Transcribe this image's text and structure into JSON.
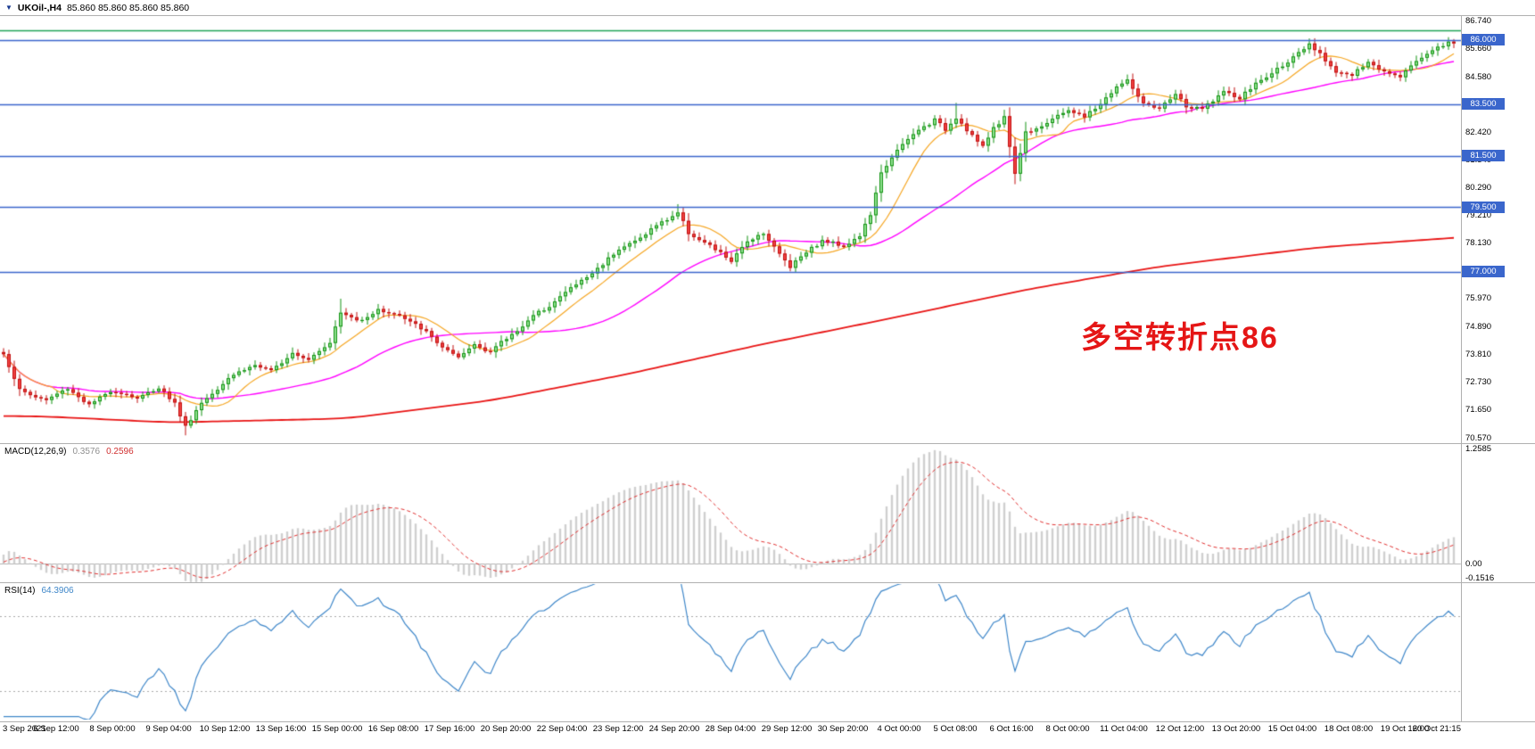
{
  "header": {
    "icon": "▼",
    "symbol": "UKOil-,H4",
    "ohlc": "85.860 85.860 85.860 85.860"
  },
  "annotation": {
    "text": "多空转折点86",
    "color": "#e51616"
  },
  "price_axis": {
    "labels": [
      "86.740",
      "85.660",
      "84.580",
      "83.500",
      "82.420",
      "81.340",
      "80.290",
      "79.210",
      "78.130",
      "77.050",
      "75.970",
      "74.890",
      "73.810",
      "72.730",
      "71.650",
      "70.570"
    ]
  },
  "time_axis": {
    "labels": [
      "3 Sep 2021",
      "6 Sep 12:00",
      "8 Sep 00:00",
      "9 Sep 04:00",
      "10 Sep 12:00",
      "13 Sep 16:00",
      "15 Sep 00:00",
      "16 Sep 08:00",
      "17 Sep 16:00",
      "20 Sep 20:00",
      "22 Sep 04:00",
      "23 Sep 12:00",
      "24 Sep 20:00",
      "28 Sep 04:00",
      "29 Sep 12:00",
      "30 Sep 20:00",
      "4 Oct 00:00",
      "5 Oct 08:00",
      "6 Oct 16:00",
      "8 Oct 00:00",
      "11 Oct 04:00",
      "12 Oct 12:00",
      "13 Oct 20:00",
      "15 Oct 04:00",
      "18 Oct 08:00",
      "19 Oct 16:00",
      "20 Oct 21:15"
    ]
  },
  "panels": {
    "macd": {
      "title": "MACD(12,26,9)",
      "value_main": "0.3576",
      "value_signal": "0.2596",
      "scale_labels": [
        {
          "text": "1.2585",
          "value": 1.2585
        },
        {
          "text": "0.00",
          "value": 0
        },
        {
          "text": "-0.1516",
          "value": -0.1516
        }
      ]
    },
    "rsi": {
      "title": "RSI(14)",
      "value": "64.3906",
      "levels": [
        70,
        30
      ]
    }
  },
  "colors": {
    "up_border": "#129212",
    "up_fill": "#8fe08f",
    "down_border": "#c01010",
    "down_fill": "#f04040",
    "ma_fast": "#f5a623",
    "ma_mid": "#ff00ff",
    "ma_slow": "#e81414",
    "hline_blue": "#3a66cc",
    "hline_green": "#1fa356",
    "macd_hist": "#cfcfcf",
    "macd_signal": "#e03131",
    "rsi_line": "#3f87c9",
    "rsi_level": "#a9a9a9"
  },
  "chart_data": {
    "type": "candlestick",
    "symbol": "UKOil-",
    "timeframe": "H4",
    "candle_count": 272,
    "price_range": {
      "min": 70.45,
      "max": 86.85
    },
    "close_anchors": [
      [
        0,
        73.8
      ],
      [
        3,
        72.4
      ],
      [
        8,
        72.0
      ],
      [
        12,
        72.5
      ],
      [
        16,
        71.8
      ],
      [
        20,
        72.4
      ],
      [
        25,
        72.1
      ],
      [
        29,
        72.5
      ],
      [
        32,
        71.9
      ],
      [
        34,
        71.0
      ],
      [
        37,
        71.9
      ],
      [
        42,
        72.9
      ],
      [
        47,
        73.4
      ],
      [
        50,
        73.1
      ],
      [
        54,
        73.9
      ],
      [
        57,
        73.6
      ],
      [
        61,
        74.3
      ],
      [
        63,
        75.4
      ],
      [
        66,
        75.1
      ],
      [
        70,
        75.5
      ],
      [
        74,
        75.3
      ],
      [
        78,
        74.8
      ],
      [
        82,
        74.1
      ],
      [
        85,
        73.6
      ],
      [
        88,
        74.2
      ],
      [
        91,
        73.9
      ],
      [
        94,
        74.4
      ],
      [
        98,
        75.1
      ],
      [
        102,
        75.7
      ],
      [
        105,
        76.2
      ],
      [
        109,
        76.8
      ],
      [
        112,
        77.3
      ],
      [
        115,
        77.9
      ],
      [
        119,
        78.3
      ],
      [
        122,
        78.8
      ],
      [
        126,
        79.3
      ],
      [
        128,
        78.5
      ],
      [
        132,
        78.0
      ],
      [
        136,
        77.4
      ],
      [
        139,
        78.2
      ],
      [
        142,
        78.5
      ],
      [
        145,
        77.7
      ],
      [
        147,
        77.2
      ],
      [
        150,
        77.8
      ],
      [
        153,
        78.2
      ],
      [
        157,
        78.0
      ],
      [
        160,
        78.4
      ],
      [
        162,
        79.2
      ],
      [
        164,
        80.8
      ],
      [
        166,
        81.5
      ],
      [
        168,
        81.9
      ],
      [
        171,
        82.5
      ],
      [
        174,
        82.9
      ],
      [
        176,
        82.5
      ],
      [
        178,
        83.0
      ],
      [
        181,
        82.3
      ],
      [
        183,
        81.8
      ],
      [
        185,
        82.6
      ],
      [
        187,
        83.0
      ],
      [
        189,
        80.8
      ],
      [
        191,
        82.4
      ],
      [
        194,
        82.7
      ],
      [
        197,
        83.0
      ],
      [
        199,
        83.3
      ],
      [
        202,
        83.0
      ],
      [
        205,
        83.5
      ],
      [
        208,
        84.2
      ],
      [
        210,
        84.4
      ],
      [
        213,
        83.5
      ],
      [
        216,
        83.3
      ],
      [
        219,
        83.9
      ],
      [
        221,
        83.4
      ],
      [
        224,
        83.3
      ],
      [
        228,
        84.0
      ],
      [
        231,
        83.7
      ],
      [
        234,
        84.3
      ],
      [
        237,
        84.7
      ],
      [
        241,
        85.3
      ],
      [
        244,
        85.8
      ],
      [
        246,
        85.4
      ],
      [
        249,
        84.8
      ],
      [
        252,
        84.6
      ],
      [
        255,
        85.1
      ],
      [
        258,
        84.8
      ],
      [
        261,
        84.6
      ],
      [
        264,
        85.2
      ],
      [
        267,
        85.6
      ],
      [
        270,
        85.9
      ],
      [
        271,
        85.86
      ]
    ],
    "wick_events": [
      {
        "i": 34,
        "low": 70.65
      },
      {
        "i": 63,
        "high": 75.95
      },
      {
        "i": 126,
        "high": 79.62
      },
      {
        "i": 178,
        "high": 83.55
      },
      {
        "i": 189,
        "low": 80.5
      },
      {
        "i": 210,
        "high": 84.65
      },
      {
        "i": 244,
        "high": 86.05
      },
      {
        "i": 270,
        "high": 86.1
      }
    ],
    "moving_averages": [
      {
        "name": "ma-fast",
        "period": 10
      },
      {
        "name": "ma-mid",
        "period": 34
      }
    ],
    "slow_ma_anchors": [
      [
        0,
        71.4
      ],
      [
        25,
        71.15
      ],
      [
        58,
        71.3
      ],
      [
        85,
        72.0
      ],
      [
        110,
        73.0
      ],
      [
        135,
        74.15
      ],
      [
        160,
        75.2
      ],
      [
        185,
        76.3
      ],
      [
        210,
        77.2
      ],
      [
        240,
        77.95
      ],
      [
        271,
        78.4
      ]
    ],
    "horizontal_lines": [
      {
        "value": 86.36,
        "color_key": "hline_green",
        "tag": null
      },
      {
        "value": 86.0,
        "color_key": "hline_blue",
        "tag": "86.000"
      },
      {
        "value": 83.5,
        "color_key": "hline_blue",
        "tag": "83.500"
      },
      {
        "value": 81.5,
        "color_key": "hline_blue",
        "tag": "81.500"
      },
      {
        "value": 79.5,
        "color_key": "hline_blue",
        "tag": "79.500"
      },
      {
        "value": 77.0,
        "color_key": "hline_blue",
        "tag": "77.000"
      }
    ],
    "macd": {
      "fast": 12,
      "slow": 26,
      "signal": 9,
      "display_range": {
        "min": -0.1516,
        "max": 1.2585
      }
    },
    "rsi": {
      "period": 14,
      "levels": [
        70,
        30
      ],
      "display_range": {
        "min": 15,
        "max": 87
      }
    }
  }
}
